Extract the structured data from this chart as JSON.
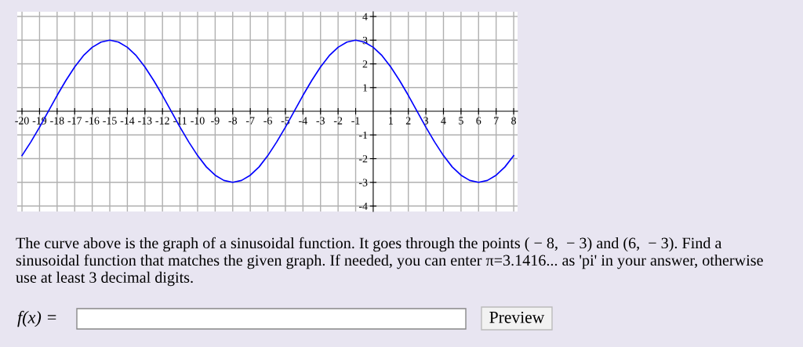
{
  "chart_data": {
    "type": "line",
    "x": [
      -20,
      -19.5,
      -19,
      -18.5,
      -18,
      -17.5,
      -17,
      -16.5,
      -16,
      -15.5,
      -15,
      -14.5,
      -14,
      -13.5,
      -13,
      -12.5,
      -12,
      -11.5,
      -11,
      -10.5,
      -10,
      -9.5,
      -9,
      -8.5,
      -8,
      -7.5,
      -7,
      -6.5,
      -6,
      -5.5,
      -5,
      -4.5,
      -4,
      -3.5,
      -3,
      -2.5,
      -2,
      -1.5,
      -1,
      -0.5,
      0,
      0.5,
      1,
      1.5,
      2,
      2.5,
      3,
      3.5,
      4,
      4.5,
      5,
      5.5,
      6,
      6.5,
      7,
      7.5,
      8
    ],
    "series": [
      {
        "color": "#0000ff",
        "values": [
          -1.87,
          -1.3,
          -0.67,
          0,
          0.67,
          1.3,
          1.87,
          2.35,
          2.7,
          2.92,
          3,
          2.92,
          2.7,
          2.35,
          1.87,
          1.3,
          0.67,
          0,
          -0.67,
          -1.3,
          -1.87,
          -2.35,
          -2.7,
          -2.92,
          -3,
          -2.92,
          -2.7,
          -2.35,
          -1.87,
          -1.3,
          -0.67,
          0,
          0.67,
          1.3,
          1.87,
          2.35,
          2.7,
          2.92,
          3,
          2.92,
          2.7,
          2.35,
          1.87,
          1.3,
          0.67,
          0,
          -0.67,
          -1.3,
          -1.87,
          -2.35,
          -2.7,
          -2.92,
          -3,
          -2.92,
          -2.7,
          -2.35,
          -1.87
        ]
      }
    ],
    "xlim": [
      -20.27,
      8.22
    ],
    "ylim": [
      -4.23,
      4.2
    ],
    "xticks": [
      -20,
      -19,
      -18,
      -17,
      -16,
      -15,
      -14,
      -13,
      -12,
      -11,
      -10,
      -9,
      -8,
      -7,
      -6,
      -5,
      -4,
      -3,
      -2,
      -1,
      1,
      2,
      3,
      4,
      5,
      6,
      7,
      8
    ],
    "yticks": [
      -4,
      -3,
      -2,
      -1,
      1,
      2,
      3,
      4
    ],
    "grid": true,
    "marker": "none",
    "line_style": "solid",
    "legend": false,
    "annotations": [
      "The curve above is the graph of a sinusoidal function. It goes through the points ( − 8,  − 3) and (6,  − 3). Find a",
      "sinusoidal function that matches the given graph. If needed, you can enter π=3.1416... as 'pi' in your answer, otherwise",
      "use at least 3 decimal digits.",
      "f(x) =",
      "Preview"
    ]
  }
}
